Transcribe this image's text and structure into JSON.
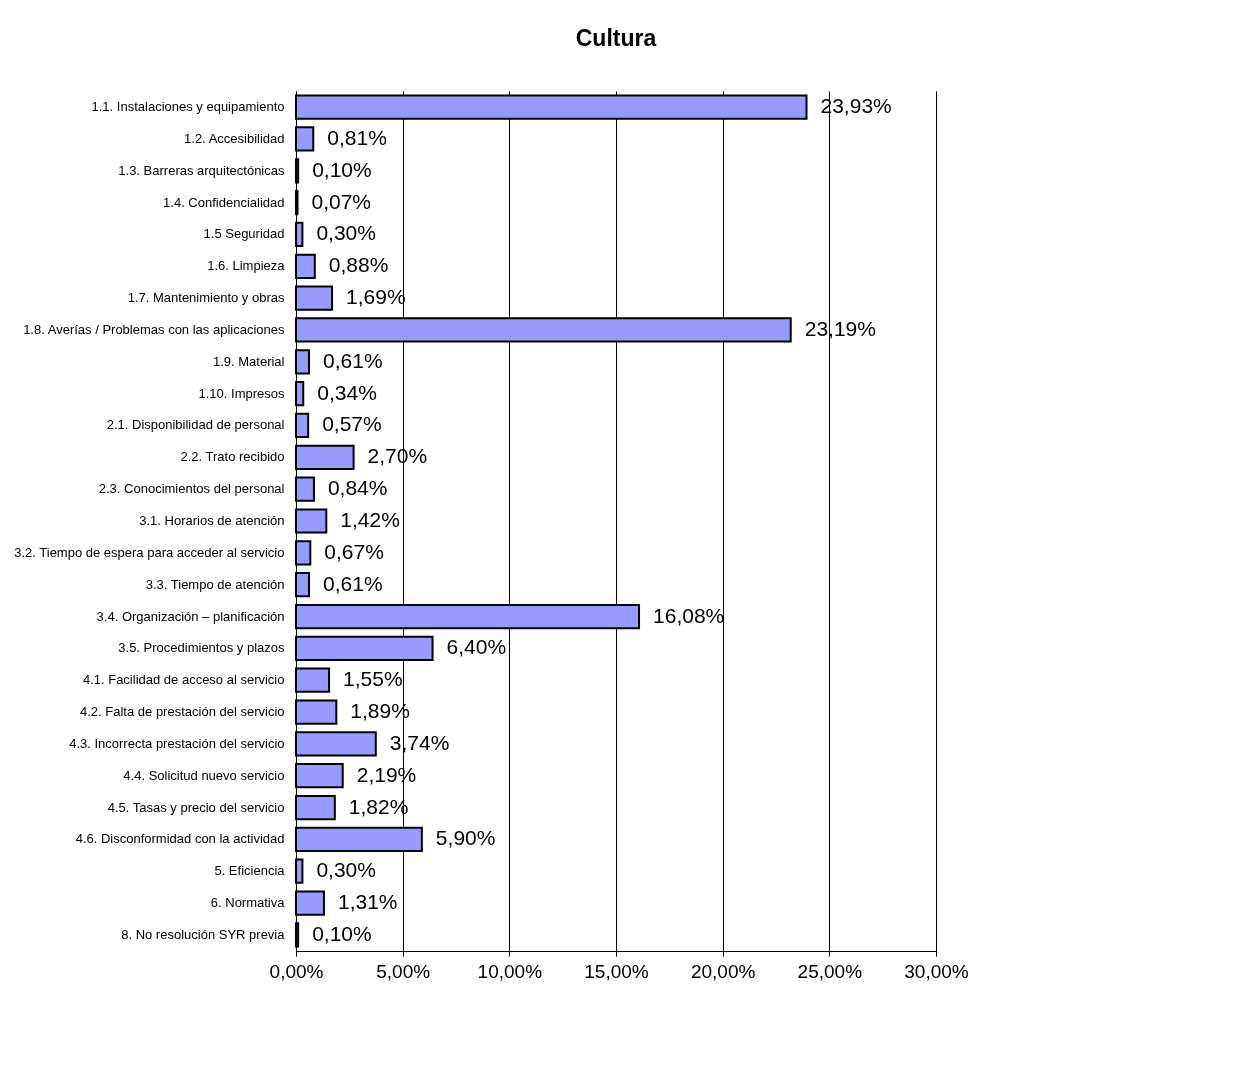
{
  "chart_data": {
    "type": "bar",
    "orientation": "horizontal",
    "title": "Cultura",
    "categories": [
      "1.1. Instalaciones y equipamiento",
      "1.2. Accesibilidad",
      "1.3. Barreras arquitectónicas",
      "1.4. Confidencialidad",
      "1.5  Seguridad",
      "1.6. Limpieza",
      "1.7. Mantenimiento y obras",
      "1.8. Averías / Problemas con las aplicaciones",
      "1.9. Material",
      "1.10. Impresos",
      "2.1. Disponibilidad de personal",
      "2.2. Trato recibido",
      "2.3. Conocimientos del personal",
      "3.1. Horarios de atención",
      "3.2. Tiempo de espera para acceder al servicio",
      "3.3. Tiempo de atención",
      "3.4. Organización – planificación",
      "3.5. Procedimientos y plazos",
      "4.1. Facilidad de acceso al servicio",
      "4.2. Falta de prestación del servicio",
      "4.3. Incorrecta prestación del servicio",
      "4.4. Solicitud nuevo servicio",
      "4.5. Tasas y precio del servicio",
      "4.6. Disconformidad con la actividad",
      "5. Eficiencia",
      "6. Normativa",
      "8. No resolución SYR previa"
    ],
    "values": [
      23.93,
      0.81,
      0.1,
      0.07,
      0.3,
      0.88,
      1.69,
      23.19,
      0.61,
      0.34,
      0.57,
      2.7,
      0.84,
      1.42,
      0.67,
      0.61,
      16.08,
      6.4,
      1.55,
      1.89,
      3.74,
      2.19,
      1.82,
      5.9,
      0.3,
      1.31,
      0.1
    ],
    "value_labels": [
      "23,93%",
      "0,81%",
      "0,10%",
      "0,07%",
      "0,30%",
      "0,88%",
      "1,69%",
      "23,19%",
      "0,61%",
      "0,34%",
      "0,57%",
      "2,70%",
      "0,84%",
      "1,42%",
      "0,67%",
      "0,61%",
      "16,08%",
      "6,40%",
      "1,55%",
      "1,89%",
      "3,74%",
      "2,19%",
      "1,82%",
      "5,90%",
      "0,30%",
      "1,31%",
      "0,10%"
    ],
    "color": "#9999ff",
    "xlim": [
      0,
      30
    ],
    "xticks": [
      {
        "value": 0,
        "label": "0,00%"
      },
      {
        "value": 5,
        "label": "5,00%"
      },
      {
        "value": 10,
        "label": "10,00%"
      },
      {
        "value": 15,
        "label": "15,00%"
      },
      {
        "value": 20,
        "label": "20,00%"
      },
      {
        "value": 25,
        "label": "25,00%"
      },
      {
        "value": 30,
        "label": "30,00%"
      }
    ],
    "grid": "x"
  }
}
